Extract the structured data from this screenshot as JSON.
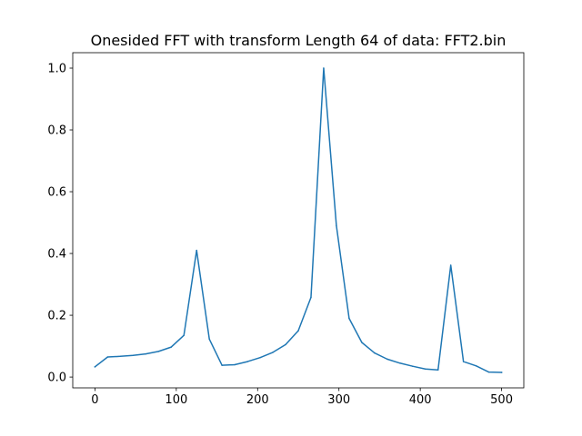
{
  "chart_data": {
    "type": "line",
    "title": "Onesided FFT with transform Length 64 of data: FFT2.bin",
    "xlabel": "",
    "ylabel": "",
    "xlim": [
      -27.3,
      527.3
    ],
    "ylim": [
      -0.035,
      1.05
    ],
    "grid": false,
    "legend": "none",
    "line_color": "#1f77b4",
    "x_ticks": [
      0,
      100,
      200,
      300,
      400,
      500
    ],
    "x_tick_labels": [
      "0",
      "100",
      "200",
      "300",
      "400",
      "500"
    ],
    "y_ticks": [
      0.0,
      0.2,
      0.4,
      0.6,
      0.8,
      1.0
    ],
    "y_tick_labels": [
      "0.0",
      "0.2",
      "0.4",
      "0.6",
      "0.8",
      "1.0"
    ],
    "series": [
      {
        "x": [
          0,
          15.625,
          31.25,
          46.875,
          62.5,
          78.125,
          93.75,
          109.375,
          125,
          140.625,
          156.25,
          171.875,
          187.5,
          203.125,
          218.75,
          234.375,
          250,
          265.625,
          281.25,
          296.875,
          312.5,
          328.125,
          343.75,
          359.375,
          375,
          390.625,
          406.25,
          421.875,
          437.5,
          453.125,
          468.75,
          484.375,
          500
        ],
        "y": [
          0.033,
          0.065,
          0.067,
          0.07,
          0.075,
          0.083,
          0.097,
          0.135,
          0.41,
          0.123,
          0.038,
          0.04,
          0.05,
          0.063,
          0.08,
          0.105,
          0.15,
          0.258,
          1.0,
          0.49,
          0.19,
          0.112,
          0.078,
          0.058,
          0.045,
          0.035,
          0.026,
          0.023,
          0.362,
          0.05,
          0.036,
          0.016,
          0.015
        ]
      }
    ]
  }
}
